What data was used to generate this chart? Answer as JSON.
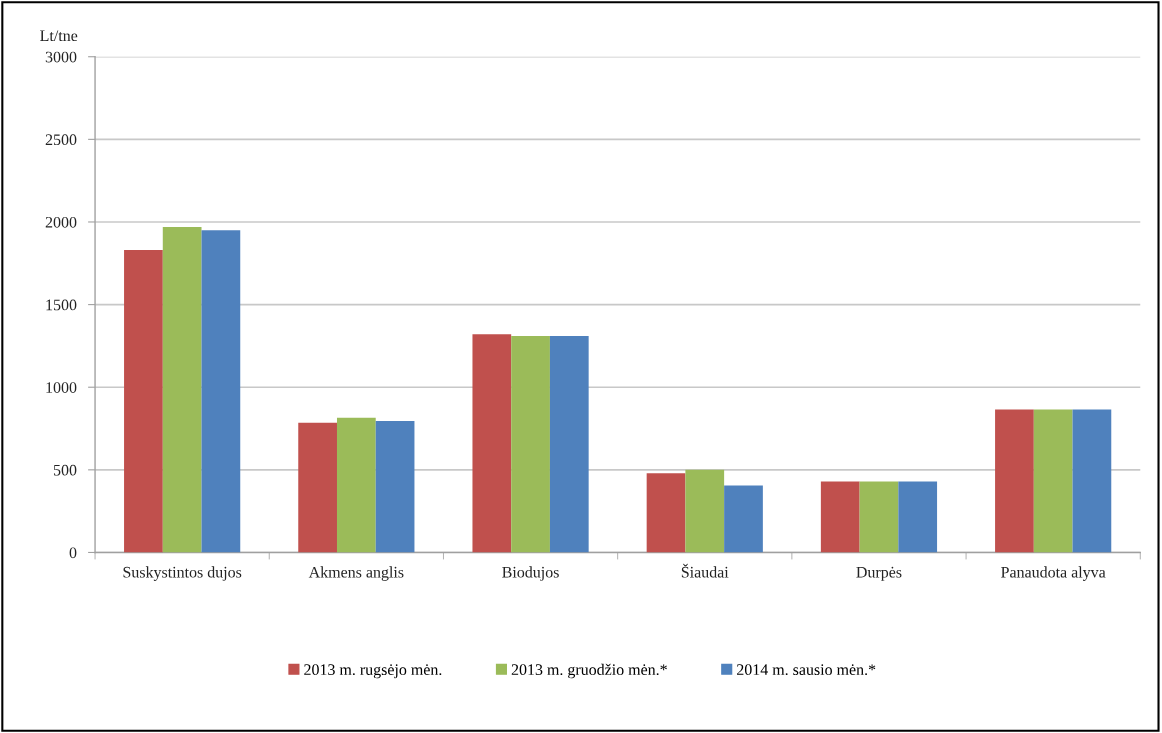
{
  "chart_data": {
    "type": "bar",
    "ylabel": "Lt/tne",
    "categories": [
      "Suskystintos dujos",
      "Akmens anglis",
      "Biodujos",
      "Šiaudai",
      "Durpės",
      "Panaudota alyva"
    ],
    "series": [
      {
        "name": "2013 m. rugsėjo mėn.",
        "color": "#c0504d",
        "values": [
          1830,
          785,
          1320,
          480,
          430,
          865
        ]
      },
      {
        "name": "2013 m. gruodžio mėn.*",
        "color": "#9bbb59",
        "values": [
          1970,
          815,
          1310,
          500,
          430,
          865
        ]
      },
      {
        "name": "2014 m. sausio mėn.*",
        "color": "#4f81bd",
        "values": [
          1950,
          795,
          1310,
          405,
          430,
          865
        ]
      }
    ],
    "ylim": [
      0,
      3000
    ],
    "yticks": [
      0,
      500,
      1000,
      1500,
      2000,
      2500,
      3000
    ],
    "grid": "y",
    "legend": "bottom"
  }
}
